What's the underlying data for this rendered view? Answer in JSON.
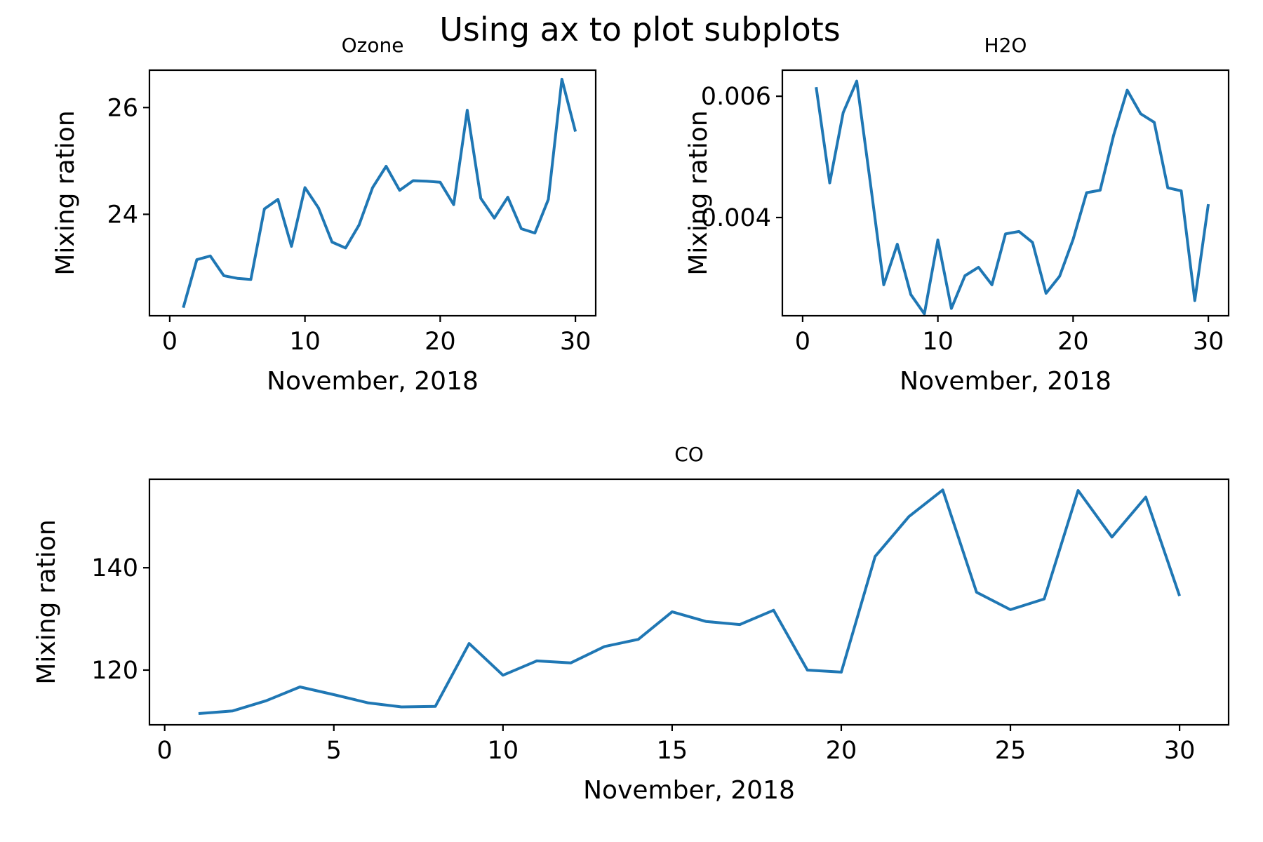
{
  "figure": {
    "suptitle": "Using ax to plot subplots"
  },
  "chart_data": [
    {
      "type": "line",
      "title": "Ozone",
      "xlabel": "November, 2018",
      "ylabel": "Mixing ration",
      "xlim": [
        -1.5,
        31.5
      ],
      "ylim": [
        22.1,
        26.7
      ],
      "xticks": [
        0,
        10,
        20,
        30
      ],
      "yticks": [
        24,
        26
      ],
      "ytick_labels": [
        "24",
        "26"
      ],
      "color": "#1f77b4",
      "x": [
        1,
        2,
        3,
        4,
        5,
        6,
        7,
        8,
        9,
        10,
        11,
        12,
        13,
        14,
        15,
        16,
        17,
        18,
        19,
        20,
        21,
        22,
        23,
        24,
        25,
        26,
        27,
        28,
        29,
        30
      ],
      "values": [
        22.25,
        23.15,
        23.22,
        22.85,
        22.8,
        22.78,
        24.1,
        24.28,
        23.4,
        24.5,
        24.12,
        23.48,
        23.37,
        23.8,
        24.5,
        24.9,
        24.45,
        24.63,
        24.62,
        24.6,
        24.18,
        25.95,
        24.3,
        23.93,
        24.32,
        23.73,
        23.65,
        24.28,
        26.53,
        25.55
      ]
    },
    {
      "type": "line",
      "title": "H2O",
      "xlabel": "November, 2018",
      "ylabel": "Mixing ration",
      "xlim": [
        -1.5,
        31.5
      ],
      "ylim": [
        0.00238,
        0.00643
      ],
      "xticks": [
        0,
        10,
        20,
        30
      ],
      "yticks": [
        0.004,
        0.006
      ],
      "ytick_labels": [
        "0.004",
        "0.006"
      ],
      "color": "#1f77b4",
      "x": [
        1,
        2,
        3,
        4,
        5,
        6,
        7,
        8,
        9,
        10,
        11,
        12,
        13,
        14,
        15,
        16,
        17,
        18,
        19,
        20,
        21,
        22,
        23,
        24,
        25,
        26,
        27,
        28,
        29,
        30
      ],
      "values": [
        0.00615,
        0.00457,
        0.00573,
        0.00625,
        0.00458,
        0.00289,
        0.00356,
        0.00273,
        0.00241,
        0.00363,
        0.0025,
        0.00304,
        0.00318,
        0.00289,
        0.00373,
        0.00377,
        0.00359,
        0.00275,
        0.00303,
        0.00364,
        0.00441,
        0.00445,
        0.00536,
        0.0061,
        0.00571,
        0.00557,
        0.00449,
        0.00444,
        0.00263,
        0.00422
      ]
    },
    {
      "type": "line",
      "title": "CO",
      "xlabel": "November, 2018",
      "ylabel": "Mixing ration",
      "xlim": [
        -0.45,
        31.45
      ],
      "ylim": [
        109.3,
        157.3
      ],
      "xticks": [
        0,
        5,
        10,
        15,
        20,
        25,
        30
      ],
      "yticks": [
        120,
        140
      ],
      "ytick_labels": [
        "120",
        "140"
      ],
      "color": "#1f77b4",
      "x": [
        1,
        2,
        3,
        4,
        5,
        6,
        7,
        8,
        9,
        10,
        11,
        12,
        13,
        14,
        15,
        16,
        17,
        18,
        19,
        20,
        21,
        22,
        23,
        24,
        25,
        26,
        27,
        28,
        29,
        30
      ],
      "values": [
        111.5,
        112.0,
        114.0,
        116.7,
        115.2,
        113.6,
        112.8,
        112.9,
        125.2,
        119.0,
        121.8,
        121.4,
        124.6,
        126.0,
        131.4,
        129.5,
        128.9,
        131.7,
        120.0,
        119.6,
        142.2,
        150.0,
        155.2,
        135.2,
        131.8,
        133.9,
        155.1,
        146.0,
        153.8,
        134.5
      ]
    }
  ]
}
